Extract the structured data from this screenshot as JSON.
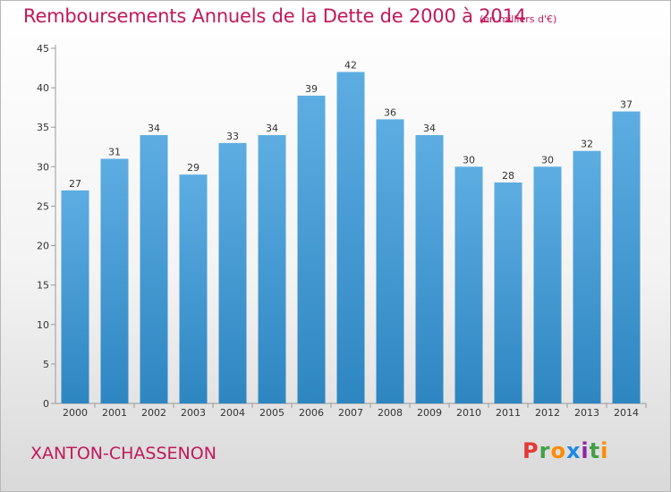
{
  "title": "Remboursements Annuels de la Dette de 2000 à 2014",
  "unit_note": "(en milliers d'€)",
  "location": "XANTON-CHASSENON",
  "logo": {
    "text": "Proxiti",
    "letters": [
      "P",
      "r",
      "o",
      "x",
      "i",
      "t",
      "i"
    ],
    "colors": [
      "#e53935",
      "#43a047",
      "#fb8c00",
      "#1e88e5",
      "#8e24aa",
      "#43a047",
      "#fb8c00"
    ]
  },
  "colors": {
    "bar_light": "#5dade2",
    "bar_dark": "#2e86c1",
    "accent": "#c2185b"
  },
  "chart_data": {
    "type": "bar",
    "categories": [
      "2000",
      "2001",
      "2002",
      "2003",
      "2004",
      "2005",
      "2006",
      "2007",
      "2008",
      "2009",
      "2010",
      "2011",
      "2012",
      "2013",
      "2014"
    ],
    "values": [
      27,
      31,
      34,
      29,
      33,
      34,
      39,
      42,
      36,
      34,
      30,
      28,
      30,
      32,
      37
    ],
    "ylim": [
      0,
      45
    ],
    "yticks": [
      0,
      5,
      10,
      15,
      20,
      25,
      30,
      35,
      40,
      45
    ],
    "grid": false,
    "xlabel": "",
    "ylabel": ""
  }
}
